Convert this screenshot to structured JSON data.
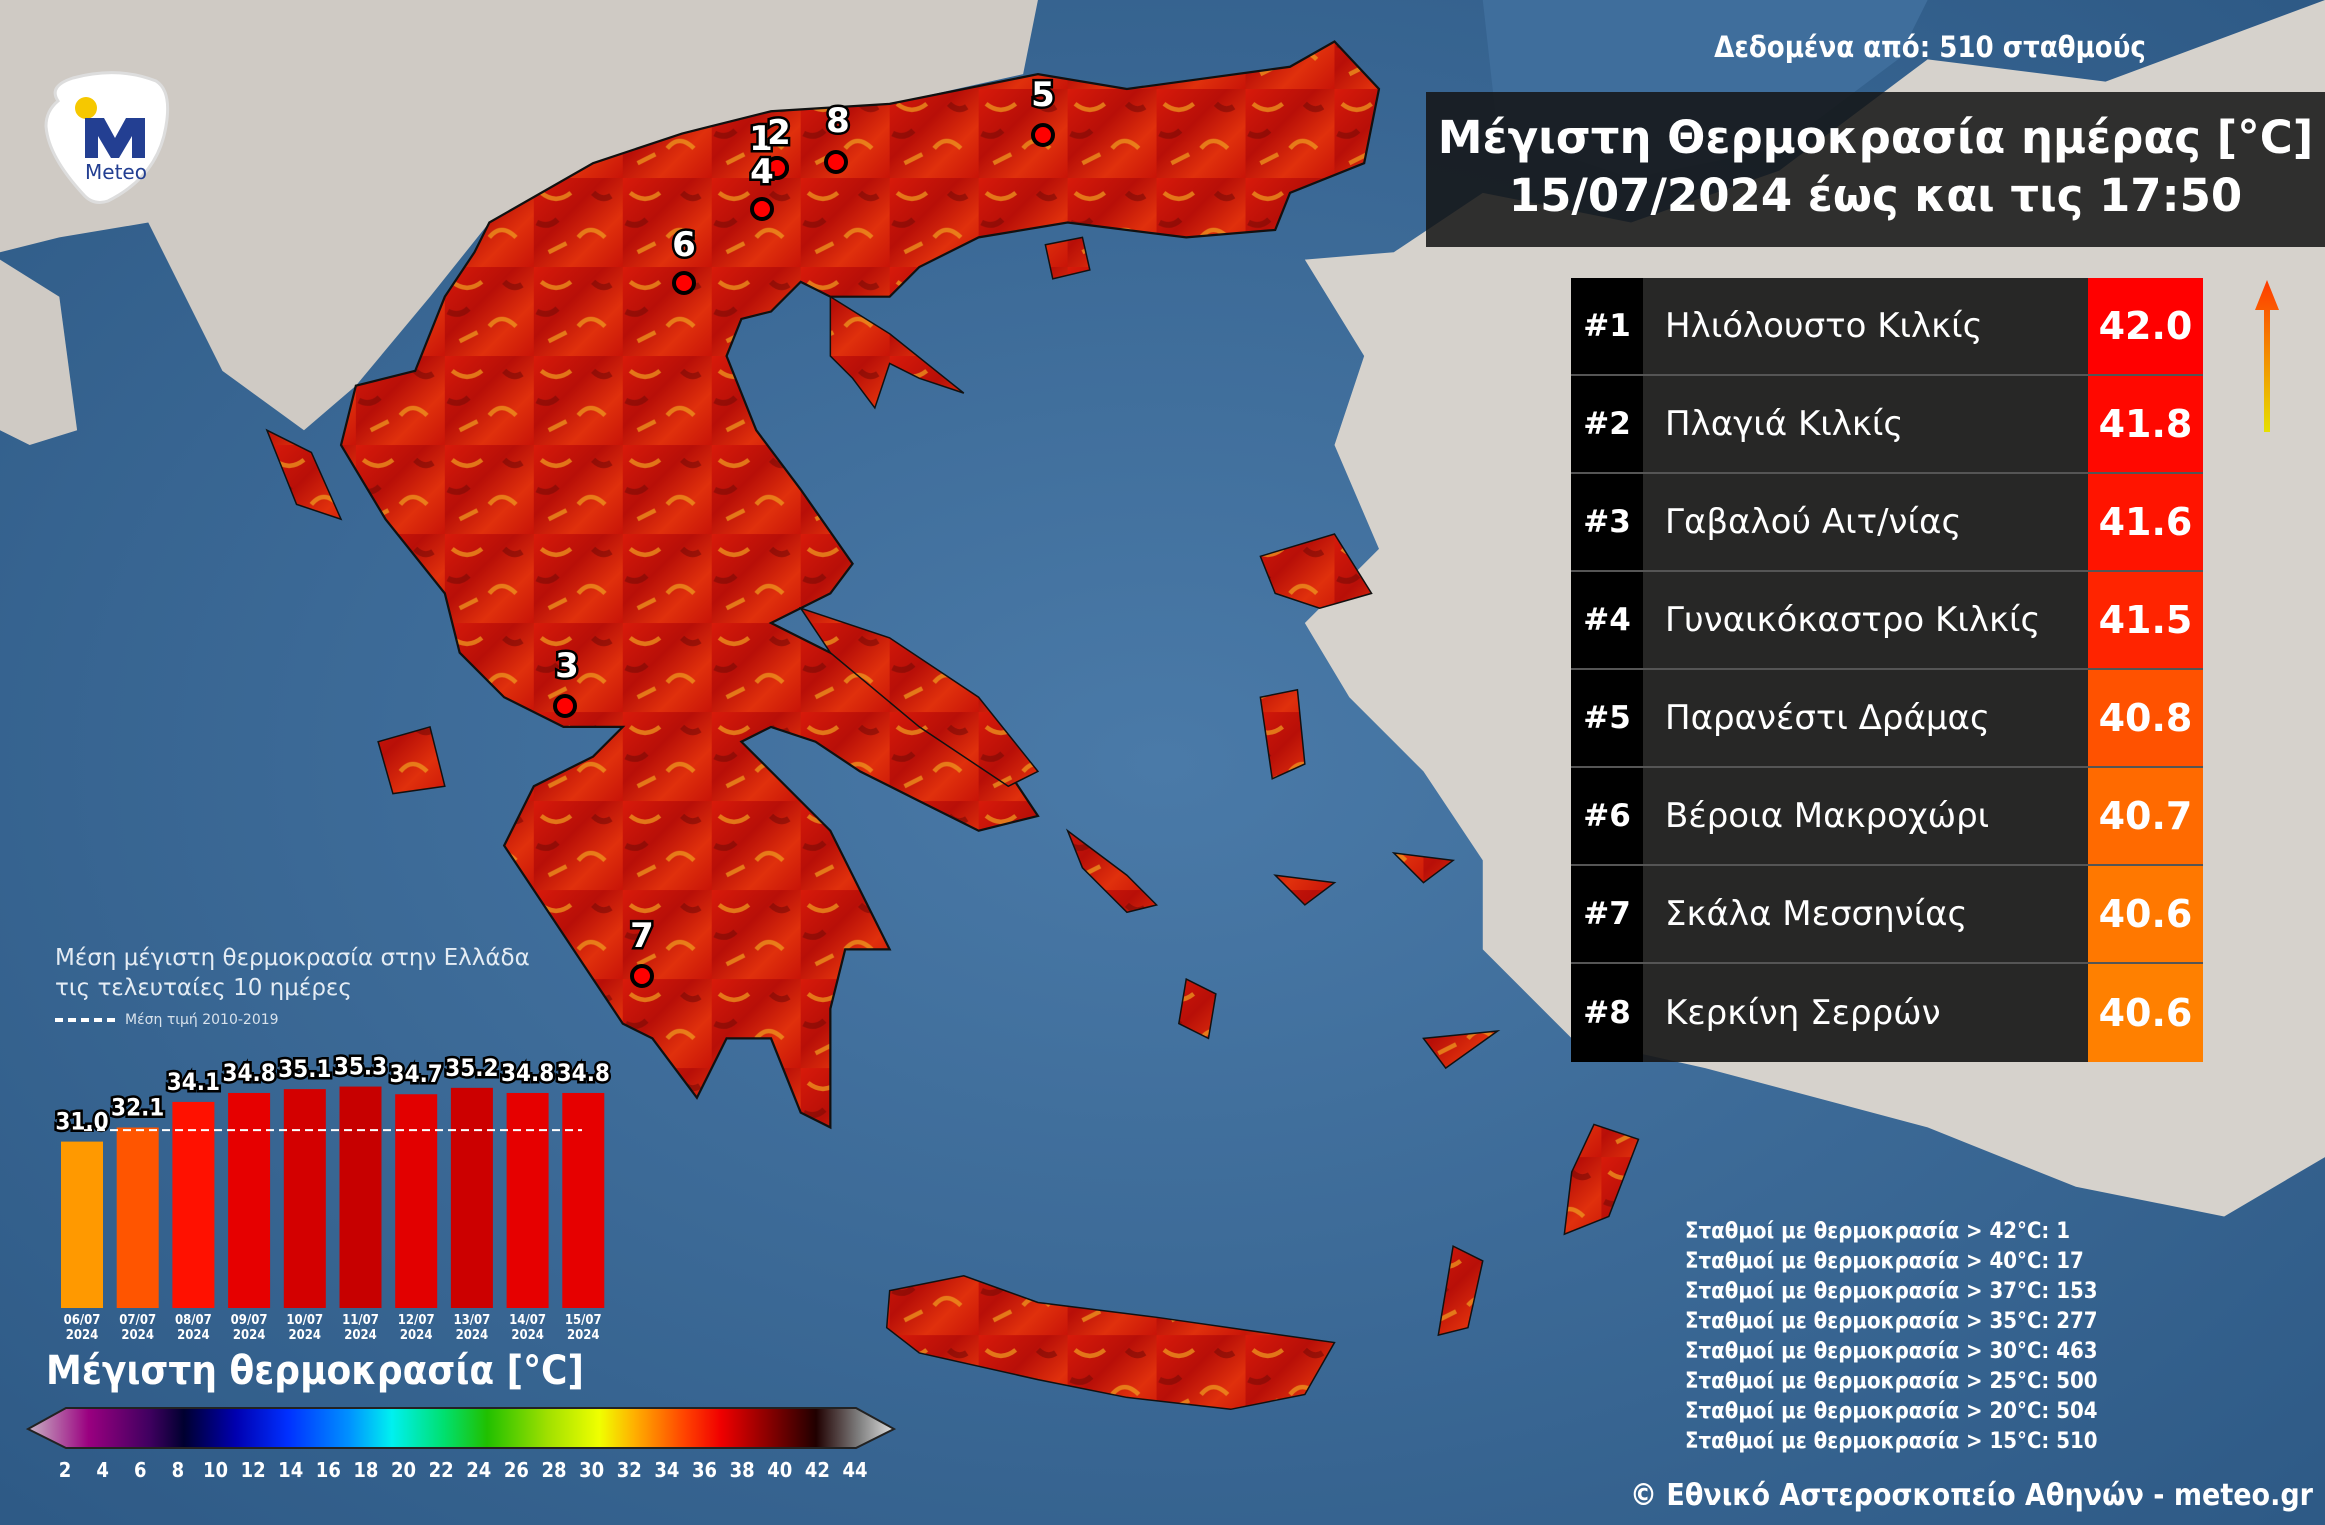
{
  "header": {
    "stations_note": "Δεδομένα από: 510 σταθμούς",
    "title_line1": "Μέγιστη Θερμοκρασία ημέρας [°C]",
    "title_line2": "15/07/2024 έως και τις 17:50"
  },
  "logo": {
    "text": "Meteo",
    "colors": {
      "blue": "#233f92",
      "yellow": "#f6c800"
    }
  },
  "ranking": [
    {
      "rank": "#1",
      "station": "Ηλιόλουστο Κιλκίς",
      "value": "42.0",
      "color": "#ff0000"
    },
    {
      "rank": "#2",
      "station": "Πλαγιά Κιλκίς",
      "value": "41.8",
      "color": "#ff0800"
    },
    {
      "rank": "#3",
      "station": "Γαβαλού Αιτ/νίας",
      "value": "41.6",
      "color": "#ff1400"
    },
    {
      "rank": "#4",
      "station": "Γυναικόκαστρο Κιλκίς",
      "value": "41.5",
      "color": "#ff2400"
    },
    {
      "rank": "#5",
      "station": "Παρανέστι Δράμας",
      "value": "40.8",
      "color": "#ff5200"
    },
    {
      "rank": "#6",
      "station": "Βέροια Μακροχώρι",
      "value": "40.7",
      "color": "#ff6a00"
    },
    {
      "rank": "#7",
      "station": "Σκάλα Μεσσηνίας",
      "value": "40.6",
      "color": "#ff7800"
    },
    {
      "rank": "#8",
      "station": "Κερκίνη Σερρών",
      "value": "40.6",
      "color": "#ff8000"
    }
  ],
  "map_markers": [
    "1",
    "2",
    "3",
    "4",
    "5",
    "6",
    "7",
    "8"
  ],
  "chart_data": {
    "type": "bar",
    "title": "Μέση μέγιστη θερμοκρασία στην Ελλάδα",
    "subtitle": "τις τελευταίες 10 ημέρες",
    "categories": [
      "06/07 2024",
      "07/07 2024",
      "08/07 2024",
      "09/07 2024",
      "10/07 2024",
      "11/07 2024",
      "12/07 2024",
      "13/07 2024",
      "14/07 2024",
      "15/07 2024"
    ],
    "category_lines": [
      [
        "06/07",
        "2024"
      ],
      [
        "07/07",
        "2024"
      ],
      [
        "08/07",
        "2024"
      ],
      [
        "09/07",
        "2024"
      ],
      [
        "10/07",
        "2024"
      ],
      [
        "11/07",
        "2024"
      ],
      [
        "12/07",
        "2024"
      ],
      [
        "13/07",
        "2024"
      ],
      [
        "14/07",
        "2024"
      ],
      [
        "15/07",
        "2024"
      ]
    ],
    "values": [
      31.0,
      32.1,
      34.1,
      34.8,
      35.1,
      35.3,
      34.7,
      35.2,
      34.8,
      34.8
    ],
    "value_labels": [
      "31.0",
      "32.1",
      "34.1",
      "34.8",
      "35.1",
      "35.3",
      "34.7",
      "35.2",
      "34.8",
      "34.8"
    ],
    "bar_colors": [
      "#ff9900",
      "#ff5500",
      "#ff1100",
      "#e60000",
      "#d30000",
      "#c70000",
      "#e20000",
      "#cc0000",
      "#e60000",
      "#e60000"
    ],
    "reference": {
      "label": "Μέση τιμή 2010-2019",
      "value": 31.9,
      "style": "dashed white"
    },
    "grid": false
  },
  "colorscale": {
    "title": "Μέγιστη θερμοκρασία [°C]",
    "ticks": [
      "2",
      "4",
      "6",
      "8",
      "10",
      "12",
      "14",
      "16",
      "18",
      "20",
      "22",
      "24",
      "26",
      "28",
      "30",
      "32",
      "34",
      "36",
      "38",
      "40",
      "42",
      "44"
    ]
  },
  "thresholds": [
    "Σταθμοί με θερμοκρασία > 42°C: 1",
    "Σταθμοί με θερμοκρασία > 40°C: 17",
    "Σταθμοί με θερμοκρασία > 37°C: 153",
    "Σταθμοί με θερμοκρασία > 35°C: 277",
    "Σταθμοί με θερμοκρασία > 30°C: 463",
    "Σταθμοί με θερμοκρασία > 25°C: 500",
    "Σταθμοί με θερμοκρασία > 20°C: 504",
    "Σταθμοί με θερμοκρασία > 15°C: 510"
  ],
  "copyright": "© Εθνικό Αστεροσκοπείο Αθηνών - meteo.gr"
}
